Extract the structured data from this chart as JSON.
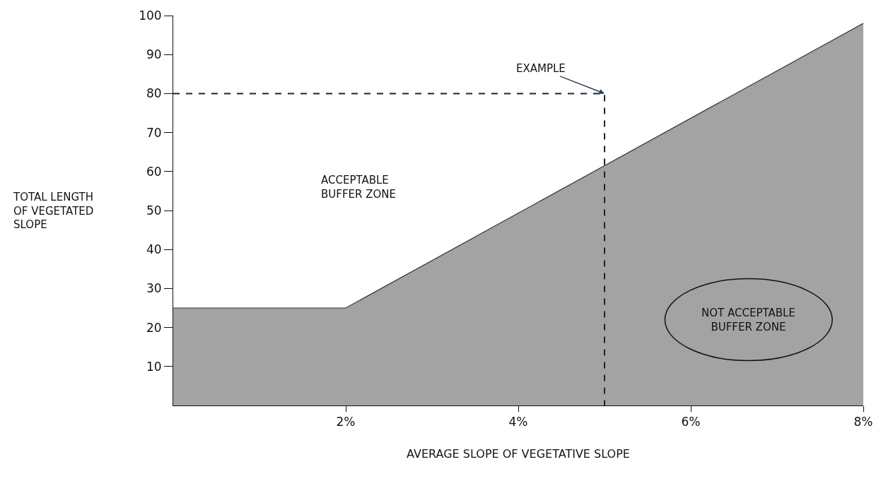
{
  "chart_data": {
    "type": "area",
    "xlabel": "AVERAGE SLOPE OF VEGETATIVE SLOPE",
    "ylabel": "TOTAL LENGTH\nOF VEGETATED\nSLOPE",
    "series": [
      {
        "color": "#a3a3a3",
        "x": [
          0,
          2,
          8
        ],
        "values": [
          25,
          25,
          98
        ]
      },
      {
        "type": "line",
        "color": "#222222",
        "line_style": "dashed",
        "x": [
          0,
          5,
          5
        ],
        "values": [
          80,
          80,
          0
        ]
      }
    ],
    "annotations": [
      {
        "text": "EXAMPLE",
        "x": 5,
        "y": 80
      },
      "ACCEPTABLE\nBUFFER ZONE",
      "NOT ACCEPTABLE\nBUFFER ZONE"
    ],
    "xlim": [
      0,
      8
    ],
    "xticks": [
      {
        "value": 2,
        "label": "2%"
      },
      {
        "value": 4,
        "label": "4%"
      },
      {
        "value": 6,
        "label": "6%"
      },
      {
        "value": 8,
        "label": "8%"
      }
    ],
    "ylim": [
      0,
      100
    ],
    "yticks": [
      10,
      20,
      30,
      40,
      50,
      60,
      70,
      80,
      90,
      100
    ]
  }
}
